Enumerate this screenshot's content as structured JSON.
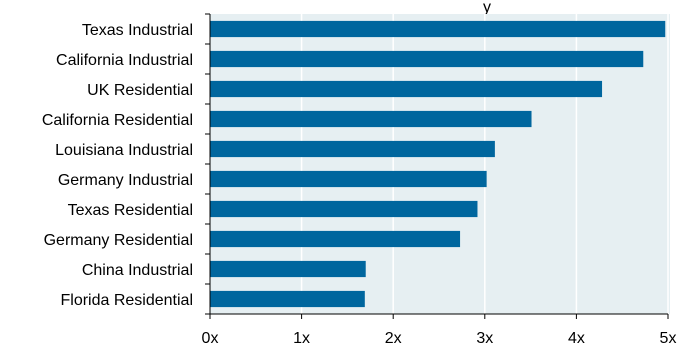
{
  "chart_data": {
    "type": "bar",
    "orientation": "horizontal",
    "title": "y",
    "categories": [
      "Texas Industrial",
      "California Industrial",
      "UK Residential",
      "California Residential",
      "Louisiana Industrial",
      "Germany Industrial",
      "Texas Residential",
      "Germany Residential",
      "China Industrial",
      "Florida Residential"
    ],
    "values": [
      4.97,
      4.73,
      4.28,
      3.51,
      3.11,
      3.02,
      2.92,
      2.73,
      1.7,
      1.69
    ],
    "xlim": [
      0,
      5
    ],
    "x_ticks": [
      0,
      1,
      2,
      3,
      4,
      5
    ],
    "x_tick_labels": [
      "0x",
      "1x",
      "2x",
      "3x",
      "4x",
      "5x"
    ],
    "grid": "vertical",
    "colors": {
      "bar": "#00669e",
      "plot_background": "#e6eff2",
      "grid": "#ffffff",
      "axis": "#000000",
      "text": "#000000"
    }
  }
}
